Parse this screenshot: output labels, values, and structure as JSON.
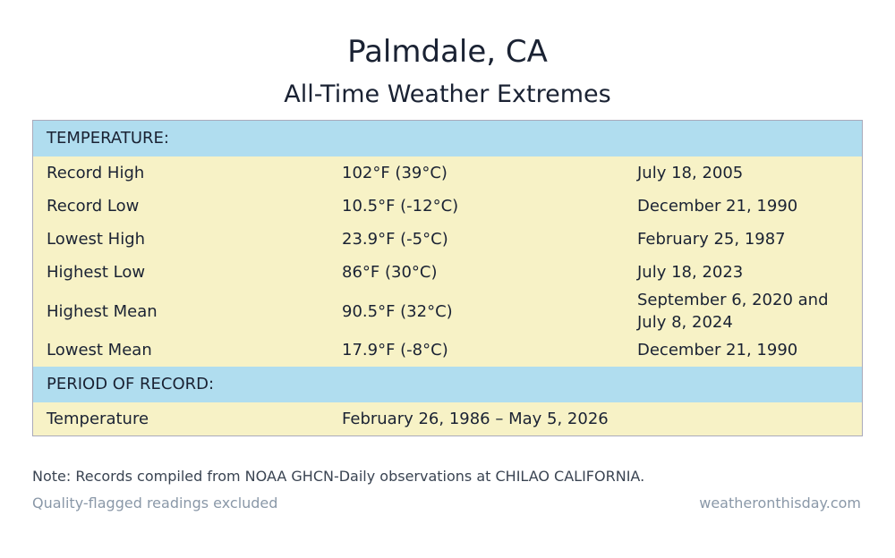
{
  "header": {
    "title": "Palmdale, CA",
    "subtitle": "All-Time Weather Extremes"
  },
  "table": {
    "sections": [
      {
        "heading": "TEMPERATURE:",
        "rows": [
          [
            "Record High",
            "102°F (39°C)",
            "July 18, 2005"
          ],
          [
            "Record Low",
            "10.5°F (-12°C)",
            "December 21, 1990"
          ],
          [
            "Lowest High",
            "23.9°F (-5°C)",
            "February 25, 1987"
          ],
          [
            "Highest Low",
            "86°F (30°C)",
            "July 18, 2023"
          ],
          [
            "Highest Mean",
            "90.5°F (32°C)",
            "September 6, 2020 and July 8, 2024"
          ],
          [
            "Lowest Mean",
            "17.9°F (-8°C)",
            "December 21, 1990"
          ]
        ]
      },
      {
        "heading": "PERIOD OF RECORD:",
        "rows": [
          [
            "Temperature",
            "February 26, 1986 – May 5, 2026"
          ]
        ]
      }
    ]
  },
  "footer": {
    "note": "Note: Records compiled from NOAA GHCN-Daily observations at CHILAO CALIFORNIA.",
    "left": "Quality-flagged readings excluded",
    "right": "weatheronthisday.com"
  }
}
